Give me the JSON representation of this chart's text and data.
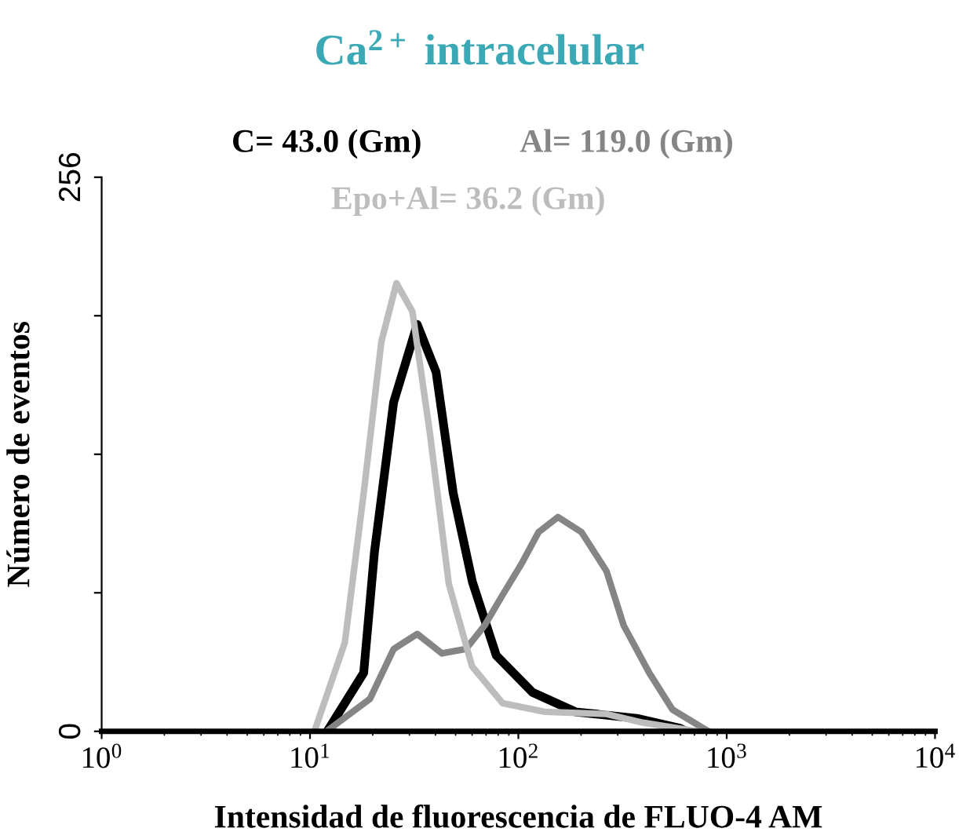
{
  "chart_data": {
    "type": "line",
    "title": "Ca$^{2+}$ intracelular",
    "xlabel": "Intensidad de fluorescencia de FLUO-4 AM",
    "ylabel": "Número de eventos",
    "log": "x",
    "xlim": [
      1,
      10000
    ],
    "ylim": [
      0,
      256
    ],
    "xticks": [
      {
        "value": 1,
        "label": "10$^{0}$"
      },
      {
        "value": 10,
        "label": "10$^{1}$"
      },
      {
        "value": 100,
        "label": "10$^{2}$"
      },
      {
        "value": 1000,
        "label": "10$^{3}$"
      },
      {
        "value": 10000,
        "label": "10$^{4}$"
      }
    ],
    "yticks": [
      0,
      {
        "value": 64,
        "label": null
      },
      {
        "value": 128,
        "label": null
      },
      {
        "value": 192,
        "label": null
      },
      256
    ],
    "grid": false,
    "legend": "top",
    "marker": "none",
    "line_style": "solid",
    "series": [
      {
        "name": "C= 43.0 (Gm)",
        "color": "#000000",
        "x": [
          12.1,
          18.1,
          20.4,
          25.2,
          32.7,
          40.3,
          48.7,
          60.2,
          78.4,
          117,
          188,
          370,
          594,
          640
        ],
        "values": [
          0,
          27,
          83,
          152,
          188,
          166,
          110,
          69,
          35,
          18,
          9,
          6,
          1.5,
          0
        ]
      },
      {
        "name": "Al= 119.0 (Gm)",
        "color": "#858585",
        "x": [
          12,
          19.4,
          25.2,
          32.7,
          43,
          56,
          69,
          84,
          103,
          125,
          155,
          201,
          265,
          320,
          425,
          550,
          770,
          820
        ],
        "values": [
          0,
          15,
          38,
          45,
          36,
          38,
          49,
          63,
          77,
          92,
          99,
          92,
          74,
          49,
          27,
          10,
          1.5,
          0
        ]
      },
      {
        "name": "Epo+Al= 36.2 (Gm)",
        "color": "#bdbdbd",
        "x": [
          10.5,
          14.7,
          18.1,
          22,
          26,
          31,
          37.6,
          46.4,
          60,
          84,
          134,
          265,
          396,
          720
        ],
        "values": [
          0,
          41,
          110,
          180,
          207,
          194,
          138,
          68,
          30,
          13,
          9,
          8,
          4,
          0
        ]
      }
    ]
  }
}
